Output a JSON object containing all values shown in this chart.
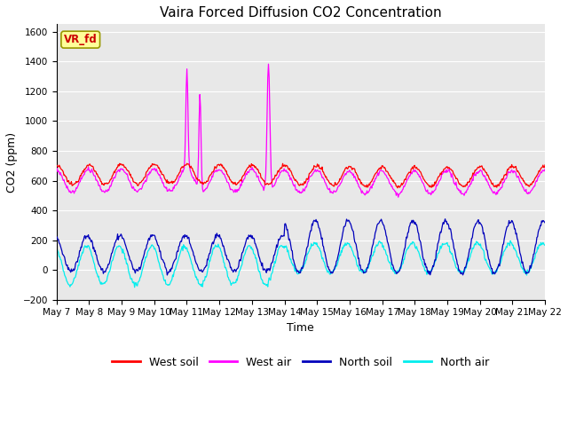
{
  "title": "Vaira Forced Diffusion CO2 Concentration",
  "xlabel": "Time",
  "ylabel": "CO2 (ppm)",
  "ylim": [
    -200,
    1650
  ],
  "yticks": [
    -200,
    0,
    200,
    400,
    600,
    800,
    1000,
    1200,
    1400,
    1600
  ],
  "n_days": 15,
  "west_soil_color": "#ff0000",
  "west_air_color": "#ff00ff",
  "north_soil_color": "#0000bb",
  "north_air_color": "#00eeee",
  "legend_labels": [
    "West soil",
    "West air",
    "North soil",
    "North air"
  ],
  "vr_fd_bg": "#ffff99",
  "vr_fd_border": "#999900",
  "vr_fd_text": "#cc0000",
  "plot_bg": "#e8e8e8",
  "fig_bg": "#ffffff"
}
